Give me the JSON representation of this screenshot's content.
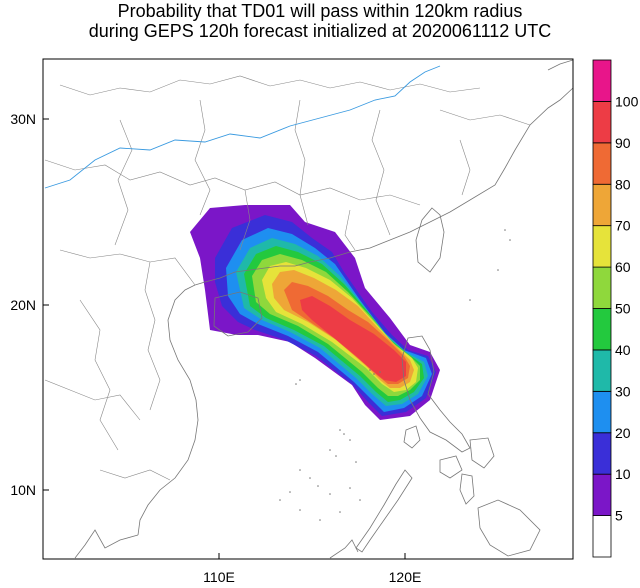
{
  "title": {
    "line1": "Probability that TD01 will pass within 120km radius",
    "line2": "during GEPS 120h forecast initialized at 2020061112 UTC"
  },
  "axes": {
    "lat_labels": [
      "30N",
      "20N",
      "10N"
    ],
    "lon_labels": [
      "110E",
      "120E"
    ]
  },
  "colorbar": {
    "levels": [
      "5",
      "10",
      "20",
      "30",
      "40",
      "50",
      "60",
      "70",
      "80",
      "90",
      "100"
    ],
    "colors": [
      "#ffffff",
      "#7b16c8",
      "#3a2fd8",
      "#1e8ff0",
      "#1fb9a9",
      "#23c93e",
      "#8fd83c",
      "#e6e33a",
      "#eea637",
      "#ef6a34",
      "#ed3c45",
      "#e8158a"
    ]
  },
  "map": {
    "region": "South China Sea / Southern China / Vietnam / Philippines",
    "lon_range": [
      101,
      129
    ],
    "lat_range": [
      7,
      33
    ]
  }
}
